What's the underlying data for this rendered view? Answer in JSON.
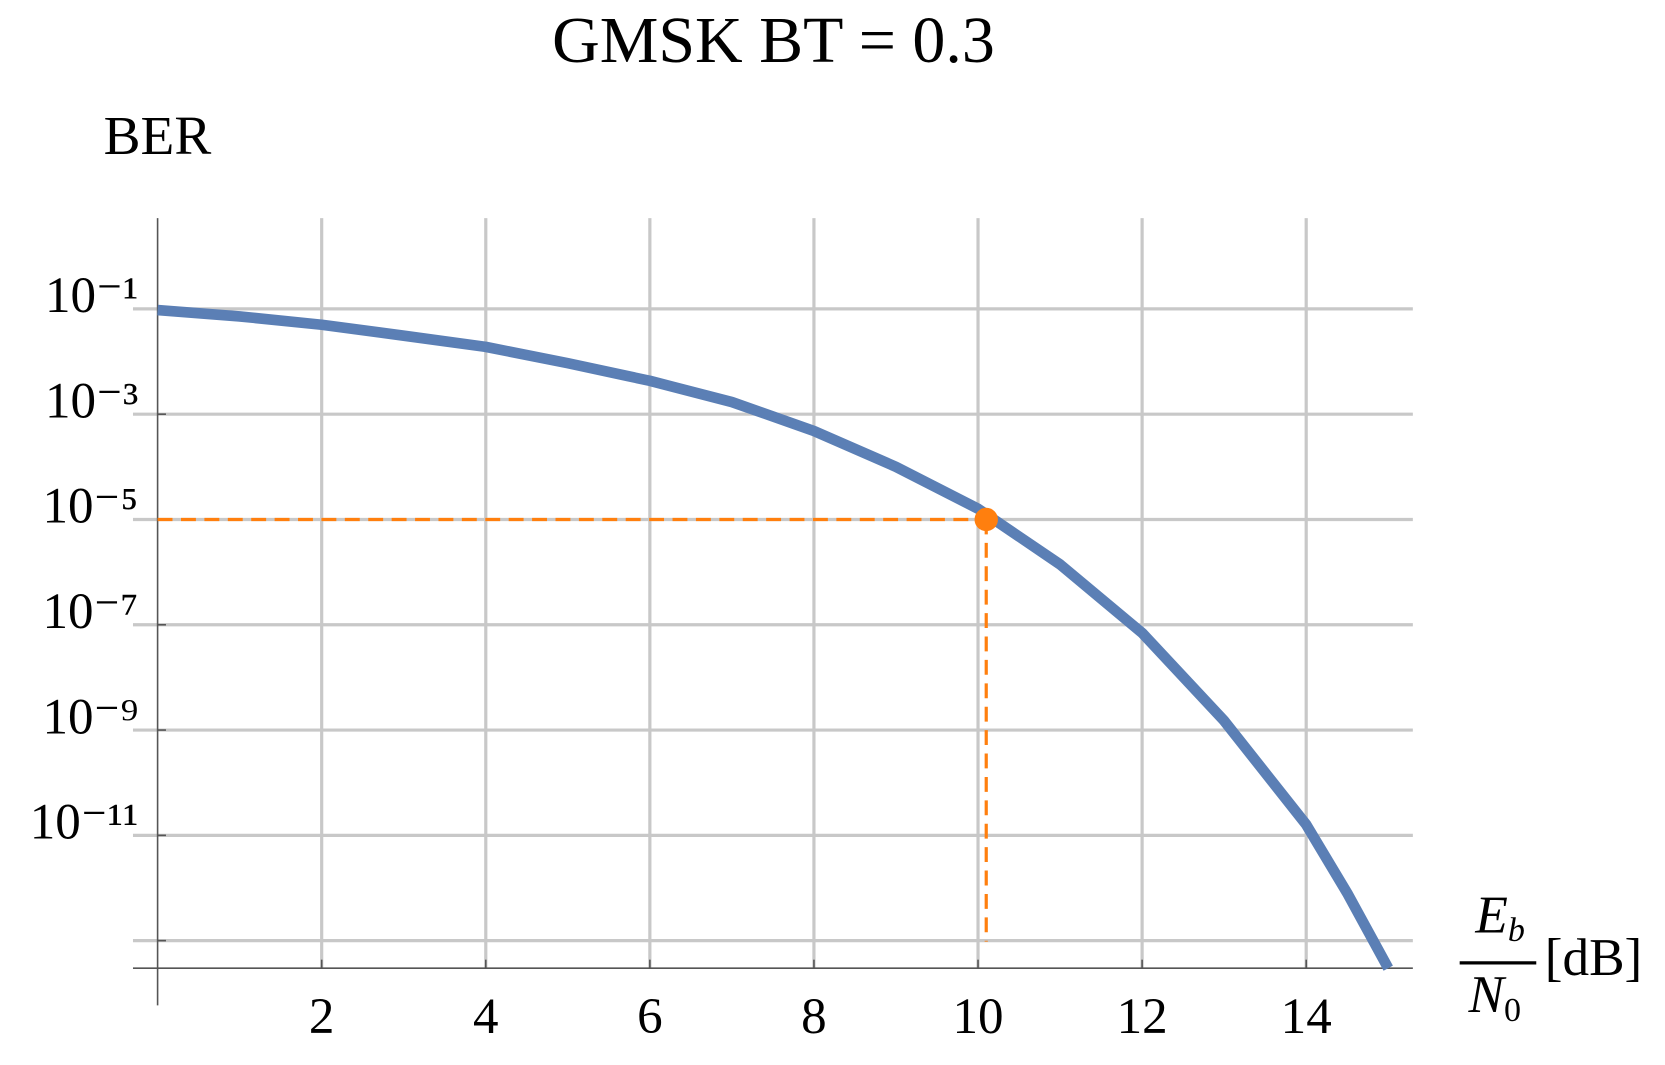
{
  "chart_data": {
    "type": "line",
    "title": "GMSK BT = 0.3",
    "ylabel": "BER",
    "xlabel": {
      "numerator": [
        "E",
        "b"
      ],
      "denominator": [
        "N",
        "0"
      ],
      "unit": "[dB]"
    },
    "x": [
      0,
      1,
      2,
      3,
      4,
      5,
      6,
      7,
      8,
      9,
      10,
      11,
      12,
      13,
      14,
      14.5,
      15
    ],
    "series": [
      {
        "color": "#5b7fb5",
        "values": [
          0.095,
          0.072,
          0.05,
          0.031,
          0.019,
          0.0093,
          0.0043,
          0.0017,
          0.00048,
          0.0001,
          1.6e-05,
          1.4e-06,
          7e-08,
          1.5e-09,
          1.6e-11,
          8e-13,
          3e-14
        ]
      }
    ],
    "marker": {
      "x": 10.1,
      "y": 1e-05,
      "color": "#ff7f0e"
    },
    "xlim": [
      -0.3,
      15.3
    ],
    "ylim": [
      3e-14,
      5.3
    ],
    "log_y": true,
    "grid": true,
    "xticks": [
      2,
      4,
      6,
      8,
      10,
      12,
      14
    ],
    "yticks": [
      {
        "value": 0.1,
        "label": "10⁻¹"
      },
      {
        "value": 0.001,
        "label": "10⁻³"
      },
      {
        "value": 1e-05,
        "label": "10⁻⁵"
      },
      {
        "value": 1e-07,
        "label": "10⁻⁷"
      },
      {
        "value": 1e-09,
        "label": "10⁻⁹"
      },
      {
        "value": 1e-11,
        "label": "10⁻¹¹"
      },
      {
        "value": 1e-13,
        "label": null
      }
    ]
  }
}
